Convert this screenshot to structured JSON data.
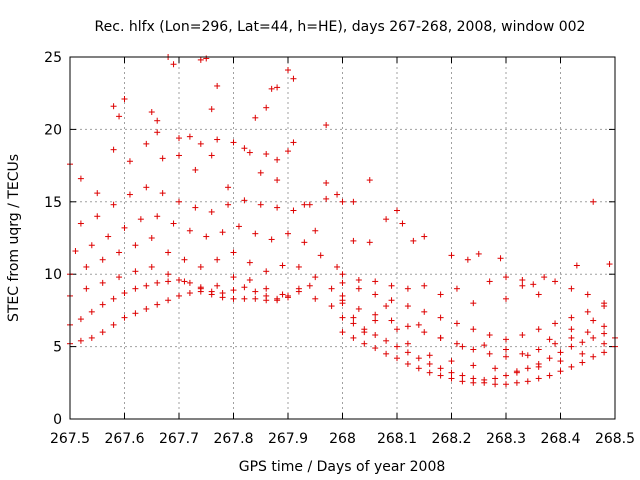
{
  "chart_data": {
    "type": "scatter",
    "title": "Rec. hlfx (Lon=296, Lat=44, h=HE), days 267-268, 2008, window 002",
    "xlabel": "GPS time / Days of year 2008",
    "ylabel": "STEC from uqrg / TECUs",
    "xlim": [
      267.5,
      268.5
    ],
    "ylim": [
      0,
      25
    ],
    "xticks": [
      "267.5",
      "267.6",
      "267.7",
      "267.8",
      "267.9",
      "268",
      "268.1",
      "268.2",
      "268.3",
      "268.4",
      "268.5"
    ],
    "yticks": [
      "0",
      "5",
      "10",
      "15",
      "20",
      "25"
    ],
    "grid": true,
    "marker": "+",
    "marker_color": "#dd0000",
    "series": [
      {
        "name": "s1",
        "x": [
          267.5,
          267.52,
          267.54,
          267.56,
          267.58,
          267.6,
          267.62,
          267.64,
          267.66,
          267.68,
          267.7,
          267.72,
          267.74,
          267.76,
          267.78,
          267.8,
          267.82,
          267.84,
          267.86,
          267.88,
          267.9
        ],
        "y": [
          5.2,
          5.4,
          5.6,
          6.0,
          6.5,
          7.0,
          7.3,
          7.6,
          7.9,
          8.2,
          8.5,
          8.7,
          8.8,
          8.6,
          8.4,
          8.3,
          8.3,
          8.3,
          8.2,
          8.3,
          8.5
        ]
      },
      {
        "name": "s2",
        "x": [
          267.5,
          267.52,
          267.54,
          267.56,
          267.58,
          267.6,
          267.62,
          267.64,
          267.66,
          267.68,
          267.7,
          267.72,
          267.74,
          267.76,
          267.78,
          267.8,
          267.82,
          267.84,
          267.86,
          267.88,
          267.9,
          267.92,
          267.94
        ],
        "y": [
          6.5,
          6.9,
          7.4,
          7.9,
          8.3,
          8.7,
          9.0,
          9.2,
          9.4,
          9.5,
          9.6,
          9.4,
          9.1,
          8.8,
          8.7,
          8.9,
          9.1,
          8.8,
          8.5,
          8.2,
          8.4,
          8.8,
          9.2
        ]
      },
      {
        "name": "s3",
        "x": [
          267.5,
          267.53,
          267.56,
          267.59,
          267.62,
          267.65,
          267.68,
          267.71,
          267.74,
          267.77,
          267.8,
          267.83,
          267.86,
          267.89,
          267.92,
          267.95,
          267.98
        ],
        "y": [
          8.5,
          9.0,
          9.4,
          9.8,
          10.2,
          10.5,
          10.0,
          9.5,
          9.0,
          9.2,
          9.8,
          9.6,
          9.0,
          8.6,
          9.0,
          8.3,
          7.8
        ]
      },
      {
        "name": "s4",
        "x": [
          267.5,
          267.53,
          267.56,
          267.59,
          267.62,
          267.65,
          267.68,
          267.71,
          267.74,
          267.77,
          267.8,
          267.83,
          267.86,
          267.89,
          267.92,
          267.95,
          267.98,
          268.0
        ],
        "y": [
          10.0,
          10.5,
          11.0,
          11.5,
          12.0,
          12.5,
          11.5,
          11.0,
          10.5,
          11.0,
          11.5,
          10.8,
          10.2,
          10.6,
          10.5,
          9.8,
          9.0,
          8.5
        ]
      },
      {
        "name": "s5",
        "x": [
          267.51,
          267.54,
          267.57,
          267.6,
          267.63,
          267.66,
          267.69,
          267.72,
          267.75,
          267.78,
          267.81,
          267.84,
          267.87,
          267.9,
          267.93,
          267.96,
          267.99
        ],
        "y": [
          11.6,
          12.0,
          12.6,
          13.2,
          13.8,
          14.0,
          13.5,
          13.0,
          12.6,
          12.9,
          13.3,
          12.8,
          12.4,
          12.8,
          12.2,
          11.3,
          10.5
        ]
      },
      {
        "name": "s6",
        "x": [
          267.52,
          267.55,
          267.58,
          267.61,
          267.64,
          267.67,
          267.7,
          267.73,
          267.76,
          267.79,
          267.82,
          267.85,
          267.88,
          267.91,
          267.94,
          267.97,
          268.0
        ],
        "y": [
          13.5,
          14.0,
          14.8,
          15.5,
          16.0,
          15.6,
          15.0,
          14.6,
          14.3,
          14.8,
          15.1,
          14.8,
          14.6,
          14.4,
          14.8,
          15.2,
          15.0
        ]
      },
      {
        "name": "s7",
        "x": [
          267.5,
          267.52,
          267.55,
          267.58,
          267.61,
          267.64,
          267.67,
          267.7,
          267.73,
          267.76,
          267.79,
          267.82,
          267.85,
          267.88,
          267.91
        ],
        "y": [
          17.6,
          16.6,
          15.6,
          18.6,
          17.8,
          19.0,
          18.0,
          19.4,
          17.2,
          18.2,
          16.0,
          18.7,
          17.0,
          16.5,
          19.1
        ]
      },
      {
        "name": "s8",
        "x": [
          267.58,
          267.59,
          267.6,
          267.65,
          267.66,
          267.68,
          267.69,
          267.72,
          267.74,
          267.75,
          267.76,
          267.77,
          267.8,
          267.84,
          267.86,
          267.87,
          267.88,
          267.9,
          267.91,
          267.97
        ],
        "y": [
          21.6,
          20.9,
          22.1,
          21.2,
          20.6,
          25.0,
          24.5,
          19.5,
          24.8,
          24.9,
          21.4,
          23.0,
          19.1,
          20.8,
          21.5,
          22.8,
          22.9,
          24.1,
          23.5,
          20.3
        ]
      },
      {
        "name": "s9",
        "x": [
          267.66,
          267.7,
          267.74,
          267.77,
          267.83,
          267.86,
          267.88,
          267.9,
          267.93,
          267.95,
          267.97,
          267.99,
          268.02,
          268.05
        ],
        "y": [
          19.8,
          18.2,
          19.0,
          19.3,
          18.4,
          18.3,
          17.9,
          18.5,
          14.8,
          13.0,
          16.3,
          15.5,
          15.0,
          16.5
        ]
      },
      {
        "name": "s10",
        "x": [
          268.0,
          268.02,
          268.04,
          268.06,
          268.08,
          268.1,
          268.12,
          268.14,
          268.16,
          268.18,
          268.2,
          268.22,
          268.24,
          268.26,
          268.28,
          268.3,
          268.32,
          268.34,
          268.36,
          268.38,
          268.4,
          268.42,
          268.44,
          268.46,
          268.48,
          268.5
        ],
        "y": [
          6.0,
          5.6,
          5.2,
          4.9,
          4.5,
          4.2,
          3.8,
          3.5,
          3.2,
          3.0,
          2.8,
          2.6,
          2.5,
          2.5,
          2.4,
          2.4,
          2.5,
          2.6,
          2.8,
          3.0,
          3.3,
          3.6,
          3.9,
          4.3,
          4.6,
          5.0
        ]
      },
      {
        "name": "s11",
        "x": [
          268.0,
          268.02,
          268.04,
          268.06,
          268.08,
          268.1,
          268.12,
          268.14,
          268.16,
          268.18,
          268.2,
          268.22,
          268.24,
          268.26,
          268.28,
          268.3,
          268.32,
          268.34,
          268.36,
          268.38,
          268.4,
          268.42,
          268.44,
          268.46,
          268.48
        ],
        "y": [
          7.0,
          6.6,
          6.2,
          5.8,
          5.4,
          5.0,
          4.6,
          4.2,
          3.8,
          3.5,
          3.2,
          3.0,
          2.8,
          2.7,
          2.8,
          3.0,
          3.2,
          3.5,
          3.8,
          4.2,
          4.6,
          5.0,
          5.3,
          5.6,
          5.9
        ]
      },
      {
        "name": "s12",
        "x": [
          268.0,
          268.03,
          268.06,
          268.09,
          268.12,
          268.15,
          268.18,
          268.21,
          268.24,
          268.27,
          268.3,
          268.33,
          268.36,
          268.39,
          268.42,
          268.45,
          268.48
        ],
        "y": [
          8.0,
          7.6,
          7.2,
          6.8,
          6.4,
          6.0,
          5.6,
          5.2,
          4.8,
          4.5,
          4.3,
          4.5,
          4.8,
          5.2,
          5.6,
          6.0,
          6.4
        ]
      },
      {
        "name": "s13",
        "x": [
          268.0,
          268.03,
          268.06,
          268.09,
          268.12,
          268.15,
          268.18,
          268.21,
          268.24,
          268.27,
          268.3,
          268.33,
          268.36,
          268.39,
          268.42,
          268.45,
          268.48
        ],
        "y": [
          9.4,
          9.0,
          8.6,
          8.2,
          7.8,
          7.4,
          7.0,
          6.6,
          6.2,
          5.8,
          5.5,
          5.8,
          6.2,
          6.6,
          7.0,
          7.4,
          7.8
        ]
      },
      {
        "name": "s14",
        "x": [
          268.0,
          268.03,
          268.06,
          268.09,
          268.12,
          268.15,
          268.18,
          268.21,
          268.24,
          268.27,
          268.3,
          268.33,
          268.36,
          268.39,
          268.42,
          268.45,
          268.48
        ],
        "y": [
          10.0,
          9.6,
          9.5,
          9.2,
          9.0,
          9.2,
          8.6,
          9.0,
          8.0,
          9.5,
          8.3,
          9.2,
          8.6,
          9.5,
          9.0,
          8.6,
          8.0
        ]
      },
      {
        "name": "s15",
        "x": [
          268.02,
          268.05,
          268.08,
          268.1,
          268.11,
          268.13,
          268.15,
          268.2,
          268.23,
          268.25,
          268.29,
          268.3,
          268.33,
          268.35,
          268.37,
          268.43,
          268.46,
          268.49,
          268.5
        ],
        "y": [
          12.3,
          12.2,
          13.8,
          14.4,
          13.5,
          12.3,
          12.6,
          11.3,
          11.0,
          11.4,
          11.1,
          9.8,
          9.6,
          9.3,
          9.8,
          10.6,
          15.0,
          10.7,
          5.6
        ]
      },
      {
        "name": "s16",
        "x": [
          268.0,
          268.02,
          268.04,
          268.06,
          268.08,
          268.1,
          268.12,
          268.14,
          268.16,
          268.18,
          268.2,
          268.22,
          268.24,
          268.26,
          268.28,
          268.3,
          268.32,
          268.34,
          268.36,
          268.38,
          268.4,
          268.42,
          268.44,
          268.46,
          268.48
        ],
        "y": [
          8.2,
          7.0,
          6.0,
          6.8,
          7.8,
          6.2,
          5.2,
          6.5,
          4.4,
          5.6,
          4.0,
          5.0,
          3.7,
          5.1,
          3.5,
          4.8,
          3.3,
          4.4,
          3.6,
          5.5,
          4.0,
          6.2,
          4.5,
          6.8,
          5.2
        ]
      }
    ]
  }
}
